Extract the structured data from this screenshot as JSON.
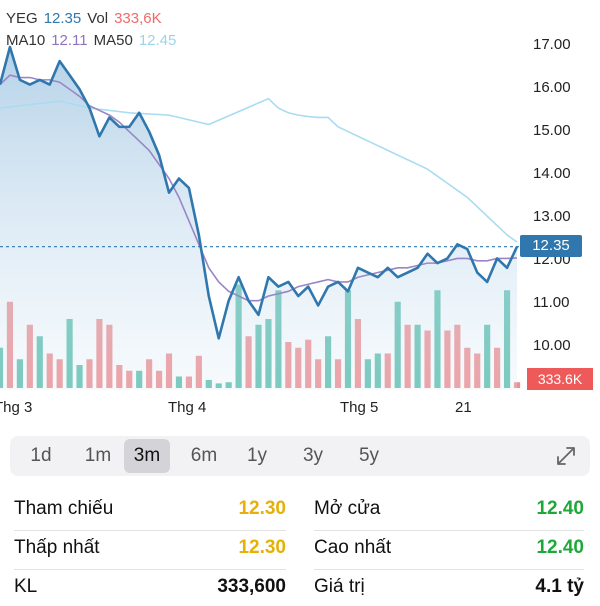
{
  "legend": {
    "ticker": "YEG",
    "price": "12.35",
    "vol_label": "Vol",
    "vol_value": "333,6K",
    "ma10_label": "MA10",
    "ma10_value": "12.11",
    "ma50_label": "MA50",
    "ma50_value": "12.45"
  },
  "colors": {
    "price_line": "#2f77ad",
    "ma10": "#9a86c4",
    "ma50": "#a9dcf0",
    "vol_up": "#5bbfad",
    "vol_down": "#f08d8f",
    "ref_yellow": "#e6b007",
    "up_green": "#1fa83a"
  },
  "price_tag": "12.35",
  "volume_tag": "333.6K",
  "chart_data": {
    "type": "line",
    "y_ticks": [
      "17.00",
      "16.00",
      "15.00",
      "14.00",
      "13.00",
      "12.00",
      "11.00",
      "10.00"
    ],
    "ylim": [
      9.3,
      17.6
    ],
    "x_ticks": [
      "Thg 3",
      "Thg 4",
      "Thg 5",
      "21"
    ],
    "price": [
      15.8,
      16.6,
      15.9,
      15.8,
      15.9,
      15.8,
      16.3,
      16.0,
      15.7,
      15.3,
      14.7,
      15.1,
      14.9,
      14.9,
      15.2,
      14.8,
      14.3,
      13.5,
      13.8,
      13.6,
      12.6,
      11.3,
      10.4,
      11.2,
      11.7,
      11.2,
      10.9,
      11.7,
      11.5,
      11.6,
      11.3,
      11.5,
      11.1,
      11.5,
      11.6,
      11.4,
      11.9,
      11.8,
      11.7,
      11.9,
      11.7,
      11.8,
      11.9,
      12.2,
      12.0,
      12.1,
      12.4,
      12.3,
      11.8,
      11.6,
      12.1,
      11.9,
      12.35
    ],
    "ma10": [
      15.8,
      16.0,
      15.95,
      15.95,
      15.9,
      15.9,
      15.85,
      15.7,
      15.55,
      15.35,
      15.25,
      15.15,
      15.0,
      14.8,
      14.6,
      14.4,
      14.1,
      13.8,
      13.4,
      12.9,
      12.4,
      11.9,
      11.6,
      11.4,
      11.3,
      11.2,
      11.2,
      11.3,
      11.35,
      11.4,
      11.5,
      11.55,
      11.6,
      11.65,
      11.6,
      11.6,
      11.7,
      11.75,
      11.8,
      11.85,
      11.9,
      11.9,
      11.95,
      12.0,
      12.0,
      12.05,
      12.1,
      12.1,
      12.05,
      12.05,
      12.1,
      12.1,
      12.11
    ],
    "ma50": [
      15.5,
      15.3,
      15.2,
      15.15,
      15.12,
      15.1,
      15.1,
      14.9,
      14.8,
      14.7,
      14.6,
      14.5,
      14.4,
      14.3,
      14.2,
      14.1,
      14.0,
      13.85,
      13.7,
      13.55,
      13.4,
      13.2,
      13.0,
      12.8,
      12.6,
      12.45
    ],
    "ma50_start_index": 27,
    "volume": [
      {
        "v": 0.35,
        "up": true
      },
      {
        "v": 0.75,
        "up": false
      },
      {
        "v": 0.25,
        "up": true
      },
      {
        "v": 0.55,
        "up": false
      },
      {
        "v": 0.45,
        "up": true
      },
      {
        "v": 0.3,
        "up": false
      },
      {
        "v": 0.25,
        "up": false
      },
      {
        "v": 0.6,
        "up": true
      },
      {
        "v": 0.2,
        "up": true
      },
      {
        "v": 0.25,
        "up": false
      },
      {
        "v": 0.6,
        "up": false
      },
      {
        "v": 0.55,
        "up": false
      },
      {
        "v": 0.2,
        "up": false
      },
      {
        "v": 0.15,
        "up": false
      },
      {
        "v": 0.15,
        "up": true
      },
      {
        "v": 0.25,
        "up": false
      },
      {
        "v": 0.15,
        "up": false
      },
      {
        "v": 0.3,
        "up": false
      },
      {
        "v": 0.1,
        "up": true
      },
      {
        "v": 0.1,
        "up": false
      },
      {
        "v": 0.28,
        "up": false
      },
      {
        "v": 0.07,
        "up": true
      },
      {
        "v": 0.04,
        "up": true
      },
      {
        "v": 0.05,
        "up": true
      },
      {
        "v": 0.9,
        "up": true
      },
      {
        "v": 0.45,
        "up": false
      },
      {
        "v": 0.55,
        "up": true
      },
      {
        "v": 0.6,
        "up": true
      },
      {
        "v": 0.85,
        "up": true
      },
      {
        "v": 0.4,
        "up": false
      },
      {
        "v": 0.35,
        "up": false
      },
      {
        "v": 0.42,
        "up": false
      },
      {
        "v": 0.25,
        "up": false
      },
      {
        "v": 0.45,
        "up": true
      },
      {
        "v": 0.25,
        "up": false
      },
      {
        "v": 0.85,
        "up": true
      },
      {
        "v": 0.6,
        "up": false
      },
      {
        "v": 0.25,
        "up": true
      },
      {
        "v": 0.3,
        "up": true
      },
      {
        "v": 0.3,
        "up": false
      },
      {
        "v": 0.75,
        "up": true
      },
      {
        "v": 0.55,
        "up": false
      },
      {
        "v": 0.55,
        "up": true
      },
      {
        "v": 0.5,
        "up": false
      },
      {
        "v": 0.85,
        "up": true
      },
      {
        "v": 0.5,
        "up": false
      },
      {
        "v": 0.55,
        "up": false
      },
      {
        "v": 0.35,
        "up": false
      },
      {
        "v": 0.3,
        "up": false
      },
      {
        "v": 0.55,
        "up": true
      },
      {
        "v": 0.35,
        "up": false
      },
      {
        "v": 0.85,
        "up": true
      },
      {
        "v": 0.05,
        "up": false
      }
    ]
  },
  "ranges": [
    "1d",
    "1m",
    "3m",
    "6m",
    "1y",
    "3y",
    "5y"
  ],
  "active_range": "3m",
  "stats": {
    "ref_label": "Tham chiếu",
    "ref_value": "12.30",
    "open_label": "Mở cửa",
    "open_value": "12.40",
    "low_label": "Thấp nhất",
    "low_value": "12.30",
    "high_label": "Cao nhất",
    "high_value": "12.40",
    "vol_label": "KL",
    "vol_value": "333,600",
    "value_label": "Giá trị",
    "value_value": "4.1 tỷ"
  }
}
